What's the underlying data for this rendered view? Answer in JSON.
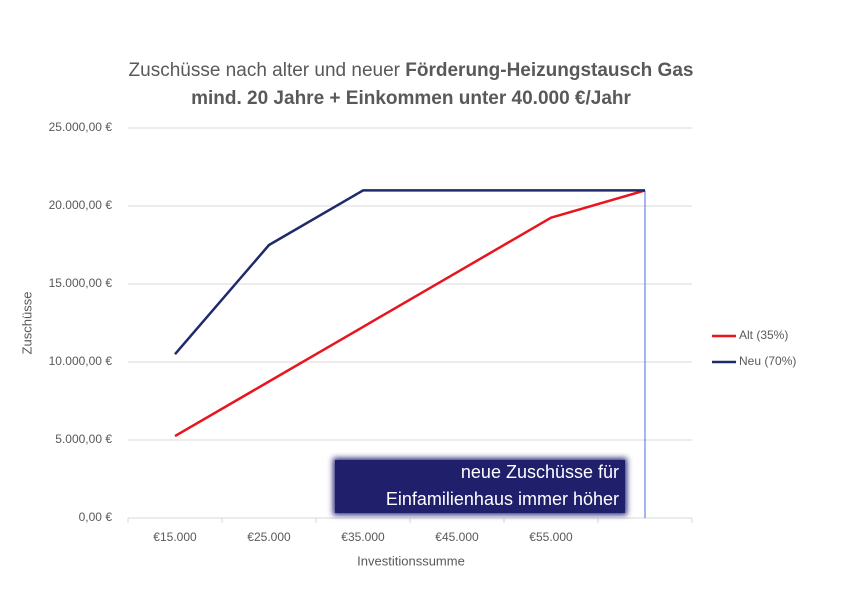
{
  "chart_data": {
    "type": "line",
    "title": [
      "Zuschüsse nach alter und neuer",
      "Förderung-Heizungstausch Gas",
      "mind. 20 Jahre + Einkommen unter 40.000 €/Jahr"
    ],
    "x_label": "Investitionssumme",
    "y_label": "Zuschüsse",
    "categories": [
      "€15.000",
      "€25.000",
      "€35.000",
      "€45.000",
      "€55.000",
      null
    ],
    "series": [
      {
        "name": "Alt (35%)",
        "color": "#e8141e",
        "values": [
          5250,
          8750,
          12250,
          15750,
          19250,
          21000
        ]
      },
      {
        "name": "Neu (70%)",
        "color": "#1f2a6b",
        "values": [
          10500,
          17500,
          21000,
          21000,
          21000,
          21000
        ]
      }
    ],
    "ylim": [
      0,
      25000
    ],
    "yticks": [
      {
        "value": 0,
        "label": "0,00 €"
      },
      {
        "value": 5000,
        "label": "5.000,00 €"
      },
      {
        "value": 10000,
        "label": "10.000,00 €"
      },
      {
        "value": 15000,
        "label": "15.000,00 €"
      },
      {
        "value": 20000,
        "label": "20.000,00 €"
      },
      {
        "value": 25000,
        "label": "25.000,00 €"
      }
    ],
    "grid": true,
    "legend": "right",
    "annotation": [
      "neue Zuschüsse für",
      "Einfamilienhaus immer höher"
    ]
  }
}
